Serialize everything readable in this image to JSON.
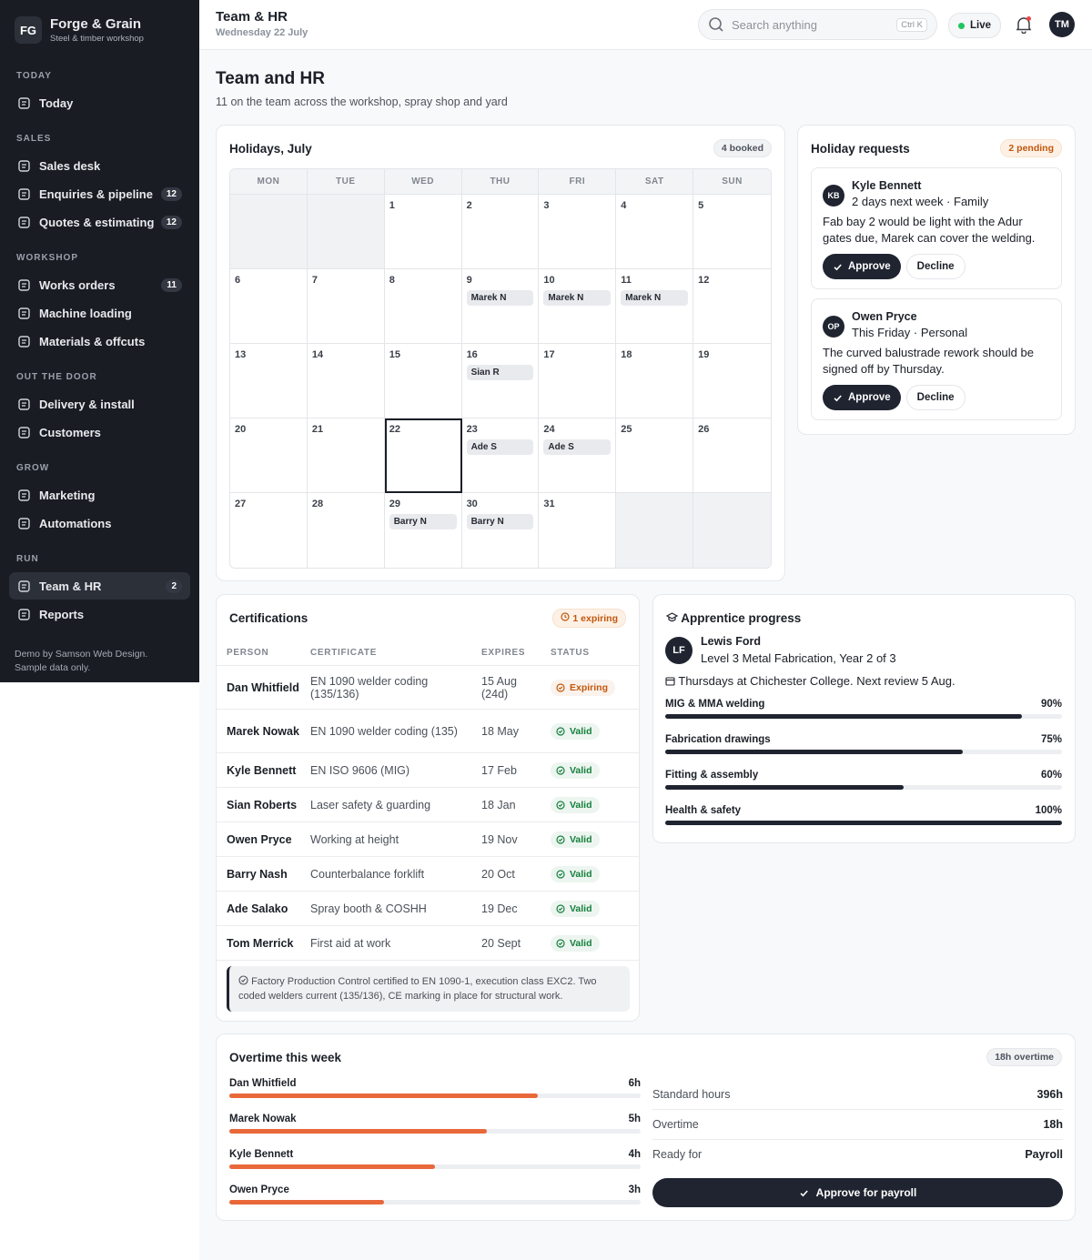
{
  "sidebar": {
    "brand": {
      "initials": "FG",
      "name": "Forge & Grain",
      "tagline": "Steel & timber workshop"
    },
    "sections": [
      {
        "title": "TODAY",
        "items": [
          {
            "label": "Today"
          }
        ]
      },
      {
        "title": "SALES",
        "items": [
          {
            "label": "Sales desk"
          },
          {
            "label": "Enquiries & pipeline",
            "badge": 12
          },
          {
            "label": "Quotes & estimating",
            "badge": 12
          }
        ]
      },
      {
        "title": "WORKSHOP",
        "items": [
          {
            "label": "Works orders",
            "badge": 11
          },
          {
            "label": "Machine loading"
          },
          {
            "label": "Materials & offcuts"
          }
        ]
      },
      {
        "title": "OUT THE DOOR",
        "items": [
          {
            "label": "Delivery & install"
          },
          {
            "label": "Customers"
          }
        ]
      },
      {
        "title": "GROW",
        "items": [
          {
            "label": "Marketing"
          },
          {
            "label": "Automations"
          }
        ]
      },
      {
        "title": "RUN",
        "items": [
          {
            "label": "Team & HR",
            "badge": 2,
            "active": true
          },
          {
            "label": "Reports"
          }
        ]
      }
    ],
    "footer": "Demo by Samson Web Design. Sample data only."
  },
  "header": {
    "title": "Team & HR",
    "date": "Wednesday 22 July",
    "search": "Search anything",
    "shortcut": "Ctrl K",
    "status": "Live",
    "avatar": "TM"
  },
  "page": {
    "title": "Team and HR",
    "subtitle": "11 on the team across the workshop, spray shop and yard"
  },
  "holidays": {
    "title": "Holidays, July",
    "badge": "4 booked",
    "today": 22,
    "calendar": {
      "weekdays": [
        "MON",
        "TUE",
        "WED",
        "THU",
        "FRI",
        "SAT",
        "SUN"
      ],
      "weeks": [
        [
          null,
          null,
          {
            "day": 1
          },
          {
            "day": 2
          },
          {
            "day": 3
          },
          {
            "day": 4
          },
          {
            "day": 5
          }
        ],
        [
          {
            "day": 6
          },
          {
            "day": 7
          },
          {
            "day": 8
          },
          {
            "day": 9,
            "events": [
              "Marek N"
            ]
          },
          {
            "day": 10,
            "events": [
              "Marek N"
            ]
          },
          {
            "day": 11,
            "events": [
              "Marek N"
            ]
          },
          {
            "day": 12
          }
        ],
        [
          {
            "day": 13
          },
          {
            "day": 14
          },
          {
            "day": 15
          },
          {
            "day": 16,
            "events": [
              "Sian R"
            ]
          },
          {
            "day": 17
          },
          {
            "day": 18
          },
          {
            "day": 19
          }
        ],
        [
          {
            "day": 20
          },
          {
            "day": 21
          },
          {
            "day": 22
          },
          {
            "day": 23,
            "events": [
              "Ade S"
            ]
          },
          {
            "day": 24,
            "events": [
              "Ade S"
            ]
          },
          {
            "day": 25
          },
          {
            "day": 26
          }
        ],
        [
          {
            "day": 27
          },
          {
            "day": 28
          },
          {
            "day": 29,
            "events": [
              "Barry N"
            ]
          },
          {
            "day": 30,
            "events": [
              "Barry N"
            ]
          },
          {
            "day": 31
          },
          null,
          null
        ]
      ]
    }
  },
  "requests": {
    "title": "Holiday requests",
    "badge": "2 pending",
    "items": [
      {
        "initials": "KB",
        "name": "Kyle Bennett",
        "detail": "2 days next week · Family",
        "message": "Fab bay 2 would be light with the Adur gates due, Marek can cover the welding.",
        "approve": "Approve",
        "decline": "Decline"
      },
      {
        "initials": "OP",
        "name": "Owen Pryce",
        "detail": "This Friday · Personal",
        "message": "The curved balustrade rework should be signed off by Thursday.",
        "approve": "Approve",
        "decline": "Decline"
      }
    ]
  },
  "certifications": {
    "title": "Certifications",
    "badge": "1 expiring",
    "columns": [
      "PERSON",
      "CERTIFICATE",
      "EXPIRES",
      "STATUS"
    ],
    "rows": [
      {
        "person": "Dan Whitfield",
        "certificate": "EN 1090 welder coding (135/136)",
        "expires": "15 Aug (24d)",
        "status": {
          "label": "Expiring",
          "color": "#c2570c"
        }
      },
      {
        "person": "Marek Nowak",
        "certificate": "EN 1090 welder coding (135)",
        "expires": "18 May",
        "status": {
          "label": "Valid",
          "color": "#15803d"
        }
      },
      {
        "person": "Kyle Bennett",
        "certificate": "EN ISO 9606 (MIG)",
        "expires": "17 Feb",
        "status": {
          "label": "Valid",
          "color": "#15803d"
        }
      },
      {
        "person": "Sian Roberts",
        "certificate": "Laser safety & guarding",
        "expires": "18 Jan",
        "status": {
          "label": "Valid",
          "color": "#15803d"
        }
      },
      {
        "person": "Owen Pryce",
        "certificate": "Working at height",
        "expires": "19 Nov",
        "status": {
          "label": "Valid",
          "color": "#15803d"
        }
      },
      {
        "person": "Barry Nash",
        "certificate": "Counterbalance forklift",
        "expires": "20 Oct",
        "status": {
          "label": "Valid",
          "color": "#15803d"
        }
      },
      {
        "person": "Ade Salako",
        "certificate": "Spray booth & COSHH",
        "expires": "19 Dec",
        "status": {
          "label": "Valid",
          "color": "#15803d"
        }
      },
      {
        "person": "Tom Merrick",
        "certificate": "First aid at work",
        "expires": "20 Sept",
        "status": {
          "label": "Valid",
          "color": "#15803d"
        }
      }
    ],
    "note": "Factory Production Control certified to EN 1090-1, execution class EXC2. Two coded welders current (135/136), CE marking in place for structural work."
  },
  "apprentice": {
    "title": "Apprentice progress",
    "initials": "LF",
    "name": "Lewis Ford",
    "role": "Level 3 Metal Fabrication, Year 2 of 3",
    "schedule": "Thursdays at Chichester College. Next review 5 Aug.",
    "xlim": [
      0,
      100
    ],
    "color": "#1f2430",
    "skills": [
      {
        "name": "MIG & MMA welding",
        "value": 90,
        "label": "90%"
      },
      {
        "name": "Fabrication drawings",
        "value": 75,
        "label": "75%"
      },
      {
        "name": "Fitting & assembly",
        "value": 60,
        "label": "60%"
      },
      {
        "name": "Health & safety",
        "value": 100,
        "label": "100%"
      }
    ]
  },
  "overtime": {
    "title": "Overtime this week",
    "badge": "18h overtime",
    "xlim": [
      0,
      8
    ],
    "color": "#e8683a",
    "people": [
      {
        "name": "Dan Whitfield",
        "value": 6,
        "label": "6h"
      },
      {
        "name": "Marek Nowak",
        "value": 5,
        "label": "5h"
      },
      {
        "name": "Kyle Bennett",
        "value": 4,
        "label": "4h"
      },
      {
        "name": "Owen Pryce",
        "value": 3,
        "label": "3h"
      }
    ],
    "summary": [
      {
        "label": "Standard hours",
        "value": "396h"
      },
      {
        "label": "Overtime",
        "value": "18h"
      },
      {
        "label": "Ready for",
        "value": "Payroll"
      }
    ],
    "button": "Approve for payroll"
  }
}
